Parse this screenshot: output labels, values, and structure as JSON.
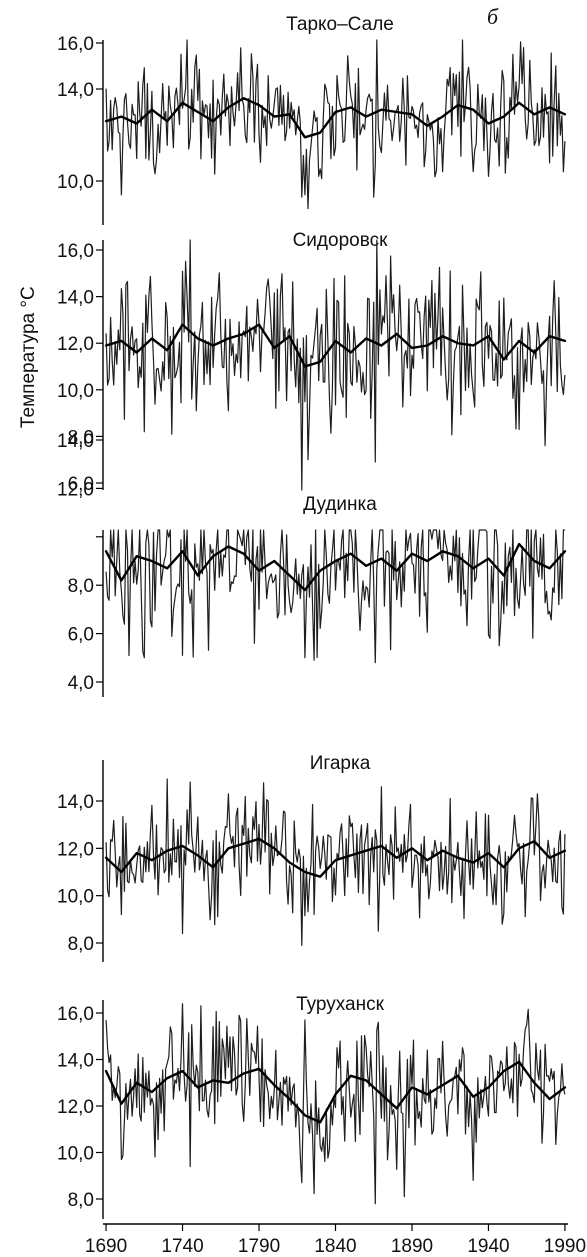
{
  "figure": {
    "header_letter": "б",
    "ylabel": "Температура °С",
    "colors": {
      "raw": "#1e1e1e",
      "smooth": "#000000",
      "axis": "#000000"
    }
  },
  "chart_data": [
    {
      "type": "line",
      "title": "Тарко–Сале",
      "xlim": [
        1688,
        1992
      ],
      "ylim": [
        9.0,
        16.8
      ],
      "yticks": [
        10.0,
        14.0,
        16.0
      ],
      "ytick_labels": [
        "10,0",
        "14,0",
        "16,0"
      ],
      "series": [
        {
          "kind": "raw",
          "mean": 12.9,
          "amplitude": 1.15,
          "spikes": [
            [
              1700,
              9.4
            ],
            [
              1743,
              16.6
            ],
            [
              1818,
              9.3
            ],
            [
              1822,
              8.8
            ],
            [
              1865,
              9.3
            ],
            [
              1867,
              16.4
            ],
            [
              1940,
              10.2
            ],
            [
              1963,
              15.8
            ],
            [
              1989,
              10.4
            ]
          ]
        },
        {
          "kind": "smooth",
          "values": [
            [
              1690,
              12.6
            ],
            [
              1700,
              12.8
            ],
            [
              1710,
              12.5
            ],
            [
              1720,
              13.1
            ],
            [
              1730,
              12.6
            ],
            [
              1740,
              13.4
            ],
            [
              1750,
              13.0
            ],
            [
              1760,
              12.6
            ],
            [
              1770,
              13.2
            ],
            [
              1780,
              13.6
            ],
            [
              1790,
              13.3
            ],
            [
              1800,
              12.8
            ],
            [
              1810,
              12.9
            ],
            [
              1820,
              11.9
            ],
            [
              1830,
              12.1
            ],
            [
              1840,
              13.0
            ],
            [
              1850,
              13.2
            ],
            [
              1860,
              12.8
            ],
            [
              1870,
              13.1
            ],
            [
              1880,
              13.0
            ],
            [
              1890,
              12.9
            ],
            [
              1900,
              12.4
            ],
            [
              1910,
              12.8
            ],
            [
              1920,
              13.3
            ],
            [
              1930,
              13.1
            ],
            [
              1940,
              12.5
            ],
            [
              1950,
              12.8
            ],
            [
              1960,
              13.4
            ],
            [
              1970,
              12.9
            ],
            [
              1980,
              13.2
            ],
            [
              1990,
              12.9
            ]
          ]
        }
      ]
    },
    {
      "type": "line",
      "title": "Сидоровск",
      "xlim": [
        1688,
        1992
      ],
      "ylim": [
        5.4,
        17.2
      ],
      "yticks": [
        6.0,
        8.0,
        10.0,
        12.0,
        14.0,
        16.0
      ],
      "ytick_labels": [
        "6,0",
        "8,0",
        "10,0",
        "12,0",
        "14,0",
        "16,0"
      ],
      "series": [
        {
          "kind": "raw",
          "mean": 11.9,
          "amplitude": 1.5,
          "spikes": [
            [
              1715,
              8.2
            ],
            [
              1733,
              8.1
            ],
            [
              1745,
              16.8
            ],
            [
              1770,
              9.1
            ],
            [
              1818,
              5.6
            ],
            [
              1822,
              7.0
            ],
            [
              1866,
              6.9
            ],
            [
              1867,
              16.7
            ],
            [
              1915,
              15.1
            ],
            [
              1960,
              8.3
            ],
            [
              1977,
              7.6
            ],
            [
              1989,
              9.8
            ]
          ]
        },
        {
          "kind": "smooth",
          "values": [
            [
              1690,
              11.9
            ],
            [
              1700,
              12.1
            ],
            [
              1710,
              11.6
            ],
            [
              1720,
              12.2
            ],
            [
              1730,
              11.7
            ],
            [
              1740,
              12.8
            ],
            [
              1750,
              12.2
            ],
            [
              1760,
              11.9
            ],
            [
              1770,
              12.2
            ],
            [
              1780,
              12.4
            ],
            [
              1790,
              12.8
            ],
            [
              1800,
              11.8
            ],
            [
              1810,
              12.3
            ],
            [
              1820,
              11.0
            ],
            [
              1830,
              11.2
            ],
            [
              1840,
              12.1
            ],
            [
              1850,
              11.6
            ],
            [
              1860,
              12.2
            ],
            [
              1870,
              11.9
            ],
            [
              1880,
              12.4
            ],
            [
              1890,
              11.8
            ],
            [
              1900,
              11.9
            ],
            [
              1910,
              12.3
            ],
            [
              1920,
              12.0
            ],
            [
              1930,
              11.9
            ],
            [
              1940,
              12.3
            ],
            [
              1950,
              11.3
            ],
            [
              1960,
              12.1
            ],
            [
              1970,
              11.6
            ],
            [
              1980,
              12.3
            ],
            [
              1990,
              12.1
            ]
          ]
        }
      ]
    },
    {
      "type": "line",
      "title": "Дудинка",
      "xlim": [
        1688,
        1992
      ],
      "ylim": [
        4.0,
        14.2
      ],
      "yticks": [
        4.0,
        6.0,
        8.0,
        10.0,
        12.0,
        14.0
      ],
      "ytick_labels": [
        "4,0",
        "6,0",
        "8,0",
        "",
        "12,0",
        "14,0"
      ],
      "series": [
        {
          "kind": "raw",
          "mean": 9.1,
          "amplitude": 1.55,
          "spikes": [
            [
              1715,
              5.0
            ],
            [
              1730,
              13.0
            ],
            [
              1740,
              5.1
            ],
            [
              1783,
              13.7
            ],
            [
              1787,
              5.6
            ],
            [
              1820,
              5.0
            ],
            [
              1826,
              4.9
            ],
            [
              1866,
              4.8
            ],
            [
              1877,
              14.6
            ],
            [
              1938,
              12.4
            ],
            [
              1947,
              5.5
            ],
            [
              1956,
              12.5
            ]
          ]
        },
        {
          "kind": "smooth",
          "values": [
            [
              1690,
              9.4
            ],
            [
              1700,
              8.2
            ],
            [
              1710,
              9.2
            ],
            [
              1720,
              9.0
            ],
            [
              1730,
              8.7
            ],
            [
              1740,
              9.4
            ],
            [
              1750,
              8.4
            ],
            [
              1760,
              9.2
            ],
            [
              1770,
              9.6
            ],
            [
              1780,
              9.3
            ],
            [
              1790,
              8.6
            ],
            [
              1800,
              9.0
            ],
            [
              1810,
              8.4
            ],
            [
              1820,
              7.8
            ],
            [
              1830,
              8.6
            ],
            [
              1840,
              9.0
            ],
            [
              1850,
              9.3
            ],
            [
              1860,
              8.8
            ],
            [
              1870,
              9.1
            ],
            [
              1880,
              8.6
            ],
            [
              1890,
              9.3
            ],
            [
              1900,
              9.0
            ],
            [
              1910,
              9.4
            ],
            [
              1920,
              9.2
            ],
            [
              1930,
              8.7
            ],
            [
              1940,
              9.1
            ],
            [
              1950,
              8.4
            ],
            [
              1960,
              9.7
            ],
            [
              1970,
              9.0
            ],
            [
              1980,
              8.7
            ],
            [
              1990,
              9.4
            ]
          ]
        }
      ]
    },
    {
      "type": "line",
      "title": "Игарка",
      "xlim": [
        1688,
        1992
      ],
      "ylim": [
        7.6,
        15.2
      ],
      "yticks": [
        8.0,
        10.0,
        12.0,
        14.0
      ],
      "ytick_labels": [
        "8,0",
        "10,0",
        "12,0",
        "14,0"
      ],
      "series": [
        {
          "kind": "raw",
          "mean": 11.7,
          "amplitude": 1.15,
          "spikes": [
            [
              1700,
              9.2
            ],
            [
              1740,
              8.4
            ],
            [
              1745,
              14.8
            ],
            [
              1770,
              14.3
            ],
            [
              1818,
              7.9
            ],
            [
              1868,
              8.5
            ],
            [
              1870,
              14.6
            ],
            [
              1915,
              14.1
            ],
            [
              1949,
              8.8
            ],
            [
              1972,
              14.3
            ],
            [
              1988,
              9.5
            ]
          ]
        },
        {
          "kind": "smooth",
          "values": [
            [
              1690,
              11.6
            ],
            [
              1700,
              11.0
            ],
            [
              1710,
              11.8
            ],
            [
              1720,
              11.5
            ],
            [
              1730,
              11.9
            ],
            [
              1740,
              12.1
            ],
            [
              1750,
              11.7
            ],
            [
              1760,
              11.2
            ],
            [
              1770,
              12.0
            ],
            [
              1780,
              12.2
            ],
            [
              1790,
              12.4
            ],
            [
              1800,
              12.0
            ],
            [
              1810,
              11.4
            ],
            [
              1820,
              11.0
            ],
            [
              1830,
              10.8
            ],
            [
              1840,
              11.5
            ],
            [
              1850,
              11.7
            ],
            [
              1860,
              11.9
            ],
            [
              1870,
              12.1
            ],
            [
              1880,
              11.6
            ],
            [
              1890,
              12.0
            ],
            [
              1900,
              11.5
            ],
            [
              1910,
              11.9
            ],
            [
              1920,
              11.6
            ],
            [
              1930,
              11.4
            ],
            [
              1940,
              11.8
            ],
            [
              1950,
              11.2
            ],
            [
              1960,
              12.0
            ],
            [
              1970,
              12.3
            ],
            [
              1980,
              11.6
            ],
            [
              1990,
              11.9
            ]
          ]
        }
      ]
    },
    {
      "type": "line",
      "title": "Туруханск",
      "xlim": [
        1688,
        1992
      ],
      "ylim": [
        7.4,
        17.2
      ],
      "yticks": [
        8.0,
        10.0,
        12.0,
        14.0,
        16.0
      ],
      "ytick_labels": [
        "8,0",
        "10,0",
        "12,0",
        "14,0",
        "16,0"
      ],
      "series": [
        {
          "kind": "raw",
          "mean": 12.8,
          "amplitude": 1.3,
          "spikes": [
            [
              1700,
              9.7
            ],
            [
              1740,
              16.4
            ],
            [
              1745,
              9.4
            ],
            [
              1777,
              15.9
            ],
            [
              1818,
              8.7
            ],
            [
              1820,
              15.7
            ],
            [
              1866,
              7.8
            ],
            [
              1868,
              15.6
            ],
            [
              1885,
              8.1
            ],
            [
              1930,
              8.8
            ],
            [
              1975,
              10.4
            ]
          ]
        },
        {
          "kind": "smooth",
          "values": [
            [
              1690,
              13.5
            ],
            [
              1700,
              12.1
            ],
            [
              1710,
              13.0
            ],
            [
              1720,
              12.6
            ],
            [
              1730,
              13.2
            ],
            [
              1740,
              13.5
            ],
            [
              1750,
              12.8
            ],
            [
              1760,
              13.1
            ],
            [
              1770,
              13.0
            ],
            [
              1780,
              13.4
            ],
            [
              1790,
              13.6
            ],
            [
              1800,
              12.9
            ],
            [
              1810,
              12.3
            ],
            [
              1820,
              11.6
            ],
            [
              1830,
              11.3
            ],
            [
              1840,
              12.5
            ],
            [
              1850,
              13.3
            ],
            [
              1860,
              13.1
            ],
            [
              1870,
              12.5
            ],
            [
              1880,
              11.9
            ],
            [
              1890,
              12.8
            ],
            [
              1900,
              12.5
            ],
            [
              1910,
              12.9
            ],
            [
              1920,
              13.3
            ],
            [
              1930,
              12.4
            ],
            [
              1940,
              12.8
            ],
            [
              1950,
              13.5
            ],
            [
              1960,
              13.9
            ],
            [
              1970,
              13.0
            ],
            [
              1980,
              12.3
            ],
            [
              1990,
              12.8
            ]
          ]
        }
      ]
    }
  ],
  "x_axis": {
    "ticks": [
      1690,
      1740,
      1790,
      1840,
      1890,
      1940,
      1990
    ],
    "labels": [
      "1690",
      "1740",
      "1790",
      "1840",
      "1890",
      "1940",
      "1990"
    ]
  }
}
